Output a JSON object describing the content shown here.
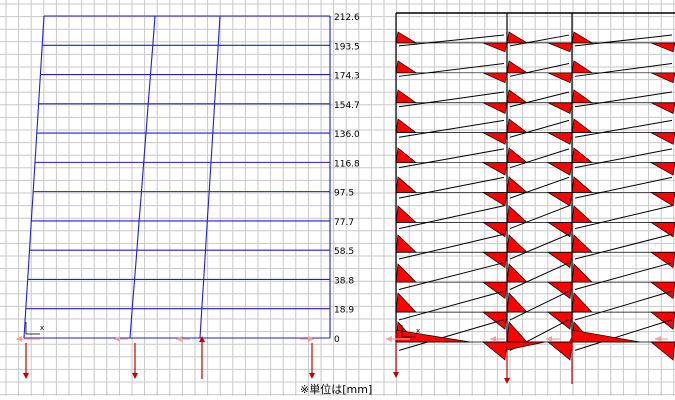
{
  "left_panel": {
    "floor_displacements": [
      "212.6",
      "193.5",
      "174.3",
      "154.7",
      "136.0",
      "116.8",
      "97.5",
      "77.7",
      "58.5",
      "38.8",
      "18.9",
      "0"
    ],
    "axis_label": "x",
    "frame_color": "#1f1fd0",
    "grid_color": "#c8c8c8"
  },
  "right_panel": {
    "axis_label": "x",
    "moment_fill_color": "#ff0000",
    "outline_color": "#000000"
  },
  "support_arrow_colors": {
    "down": "#c00000",
    "up": "#c00000",
    "light": "#f0a0a0"
  },
  "unit_note": "※単位は[mm]"
}
